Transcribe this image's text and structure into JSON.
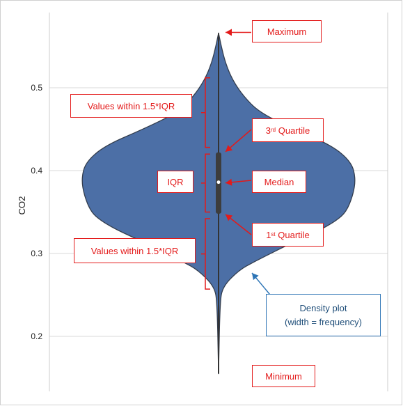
{
  "chart_data": {
    "type": "violin",
    "ylabel": "CO2",
    "ylim": [
      0.145,
      0.58
    ],
    "yticks": [
      0.2,
      0.3,
      0.4,
      0.5
    ],
    "ytick_labels": [
      "0.2",
      "0.3",
      "0.4",
      "0.5"
    ],
    "grid": "horizontal",
    "legend": "none",
    "stats": {
      "minimum": 0.155,
      "q1": 0.348,
      "median": 0.386,
      "q3": 0.422,
      "maximum": 0.566,
      "whisker_low": 0.259,
      "whisker_high": 0.512
    },
    "density": [
      [
        0.155,
        0.0
      ],
      [
        0.24,
        0.01
      ],
      [
        0.26,
        0.03
      ],
      [
        0.28,
        0.15
      ],
      [
        0.29,
        0.26
      ],
      [
        0.3,
        0.38
      ],
      [
        0.31,
        0.5
      ],
      [
        0.32,
        0.63
      ],
      [
        0.33,
        0.76
      ],
      [
        0.34,
        0.86
      ],
      [
        0.35,
        0.93
      ],
      [
        0.37,
        0.98
      ],
      [
        0.39,
        1.0
      ],
      [
        0.41,
        0.97
      ],
      [
        0.43,
        0.83
      ],
      [
        0.45,
        0.55
      ],
      [
        0.47,
        0.3
      ],
      [
        0.49,
        0.18
      ],
      [
        0.51,
        0.1
      ],
      [
        0.53,
        0.05
      ],
      [
        0.55,
        0.02
      ],
      [
        0.566,
        0.0
      ]
    ],
    "colors": {
      "violin": "#4c6fa6",
      "outline": "#333d4d",
      "grid": "#d9d9d9",
      "annotation_red": "#e31a1a",
      "annotation_blue": "#2e75b6"
    },
    "annotations": {
      "maximum": "Maximum",
      "range_upper": "Values within 1.5*IQR",
      "q3": {
        "super": "rd",
        "prefix": "3",
        "text": " Quartile"
      },
      "iqr": "IQR",
      "median": "Median",
      "q1": {
        "super": "st",
        "prefix": "1",
        "text": " Quartile"
      },
      "range_lower": "Values within 1.5*IQR",
      "density_line1": "Density plot",
      "density_line2": "(width = frequency)",
      "minimum": "Minimum"
    }
  }
}
